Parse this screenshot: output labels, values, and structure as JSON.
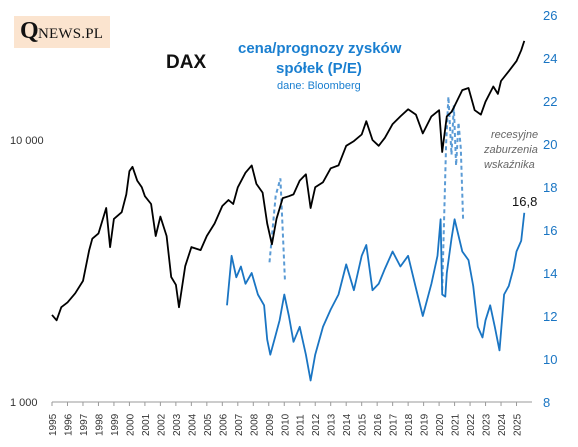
{
  "logo": {
    "initial": "Q",
    "rest": "NEWS.PL"
  },
  "titles": {
    "dax": "DAX",
    "pe_line1": "cena/prognozy zysków",
    "pe_line2": "spółek (P/E)",
    "source": "dane: Bloomberg"
  },
  "annotation": {
    "line1": "recesyjne",
    "line2": "zaburzenia",
    "line3": "wskaźnika"
  },
  "last_value_label": "16,8",
  "colors": {
    "dax": "#000000",
    "pe": "#1a75c3",
    "pe_dashed": "#5b9bd5",
    "right_axis": "#1a75c3"
  },
  "chart_data": {
    "type": "line",
    "x_range": [
      1995,
      2026
    ],
    "left_axis": {
      "scale": "log",
      "range": [
        1000,
        30000
      ],
      "tick_labels": [
        "1 000",
        "10 000"
      ],
      "tick_values": [
        1000,
        10000
      ]
    },
    "right_axis": {
      "scale": "linear",
      "range": [
        8,
        26
      ],
      "ticks": [
        8,
        10,
        12,
        14,
        16,
        18,
        20,
        22,
        24,
        26
      ]
    },
    "x_tick_labels": [
      "1995",
      "1996",
      "1997",
      "1998",
      "1999",
      "2000",
      "2001",
      "2002",
      "2003",
      "2004",
      "2005",
      "2006",
      "2007",
      "2008",
      "2009",
      "2010",
      "2011",
      "2012",
      "2013",
      "2014",
      "2015",
      "2016",
      "2017",
      "2018",
      "2019",
      "2020",
      "2021",
      "2022",
      "2023",
      "2024",
      "2025"
    ],
    "series": [
      {
        "name": "DAX",
        "axis": "left",
        "x": [
          1995.0,
          1995.3,
          1995.6,
          1996.0,
          1996.5,
          1997.0,
          1997.4,
          1997.6,
          1998.0,
          1998.5,
          1998.75,
          1999.0,
          1999.5,
          1999.8,
          2000.0,
          2000.2,
          2000.5,
          2000.8,
          2001.0,
          2001.4,
          2001.7,
          2002.0,
          2002.4,
          2002.7,
          2003.0,
          2003.2,
          2003.6,
          2004.0,
          2004.6,
          2005.0,
          2005.5,
          2006.0,
          2006.4,
          2006.7,
          2007.0,
          2007.5,
          2007.9,
          2008.2,
          2008.6,
          2008.9,
          2009.2,
          2009.5,
          2009.9,
          2010.3,
          2010.6,
          2011.0,
          2011.4,
          2011.7,
          2012.0,
          2012.5,
          2013.0,
          2013.5,
          2014.0,
          2014.5,
          2015.0,
          2015.3,
          2015.7,
          2016.1,
          2016.5,
          2017.0,
          2017.5,
          2018.0,
          2018.5,
          2018.95,
          2019.5,
          2020.0,
          2020.2,
          2020.5,
          2020.8,
          2021.0,
          2021.5,
          2021.9,
          2022.3,
          2022.7,
          2023.0,
          2023.5,
          2023.8,
          2024.0,
          2024.5,
          2025.0,
          2025.3,
          2025.5
        ],
        "y": [
          2150,
          2050,
          2300,
          2400,
          2600,
          2900,
          3800,
          4200,
          4400,
          5500,
          3900,
          5000,
          5300,
          6200,
          7600,
          7900,
          7000,
          6600,
          6100,
          5700,
          4300,
          5100,
          4300,
          3000,
          2800,
          2300,
          3300,
          3900,
          3800,
          4300,
          4800,
          5600,
          5900,
          5700,
          6600,
          7500,
          8000,
          6800,
          6300,
          4800,
          4000,
          5000,
          6000,
          6100,
          6200,
          7000,
          7400,
          5500,
          6600,
          6900,
          7800,
          8000,
          9500,
          9900,
          10500,
          11800,
          10000,
          9500,
          10200,
          11500,
          12300,
          13100,
          12500,
          10600,
          12300,
          13000,
          9000,
          12300,
          12800,
          13500,
          15500,
          15800,
          13000,
          12500,
          14000,
          16000,
          15000,
          16800,
          18300,
          20000,
          22000,
          23900
        ]
      },
      {
        "name": "P/E",
        "axis": "right",
        "x": [
          2006.3,
          2006.6,
          2006.9,
          2007.2,
          2007.5,
          2007.9,
          2008.3,
          2008.7,
          2008.9,
          2009.1,
          2009.4,
          2009.7,
          2010.0,
          2010.3,
          2010.6,
          2011.0,
          2011.4,
          2011.7,
          2012.0,
          2012.5,
          2013.0,
          2013.5,
          2014.0,
          2014.5,
          2015.0,
          2015.3,
          2015.7,
          2016.1,
          2016.5,
          2017.0,
          2017.5,
          2018.0,
          2018.5,
          2018.95,
          2019.5,
          2019.9,
          2020.1,
          2020.2,
          2020.4,
          2020.5,
          2020.8,
          2021.0,
          2021.5,
          2021.9,
          2022.2,
          2022.5,
          2022.8,
          2023.0,
          2023.3,
          2023.6,
          2023.9,
          2024.2,
          2024.5,
          2024.8,
          2025.0,
          2025.3,
          2025.5
        ],
        "y": [
          12.5,
          14.8,
          13.8,
          14.3,
          13.5,
          14.0,
          13.0,
          12.5,
          10.9,
          10.2,
          11.0,
          11.8,
          13.0,
          12.0,
          10.8,
          11.5,
          10.2,
          9.0,
          10.2,
          11.5,
          12.3,
          13.0,
          14.4,
          13.2,
          14.8,
          15.3,
          13.2,
          13.5,
          14.2,
          15.0,
          14.3,
          14.8,
          13.3,
          12.0,
          13.5,
          14.8,
          16.5,
          13.0,
          12.9,
          14.0,
          15.6,
          16.5,
          15.0,
          14.6,
          13.4,
          11.5,
          11.0,
          11.8,
          12.5,
          11.5,
          10.4,
          13.0,
          13.4,
          14.2,
          15.0,
          15.5,
          16.8
        ]
      }
    ],
    "dashed_spikes": [
      {
        "x": [
          2009.05,
          2009.45,
          2009.75,
          2010.05
        ],
        "y": [
          14.5,
          17.6,
          18.4,
          13.6
        ]
      },
      {
        "x": [
          2020.2,
          2020.45,
          2020.6,
          2020.8,
          2020.95,
          2021.1,
          2021.25,
          2021.4,
          2021.55
        ],
        "y": [
          13.2,
          20.0,
          22.2,
          19.5,
          21.8,
          19.0,
          21.0,
          19.8,
          16.5
        ]
      }
    ]
  }
}
